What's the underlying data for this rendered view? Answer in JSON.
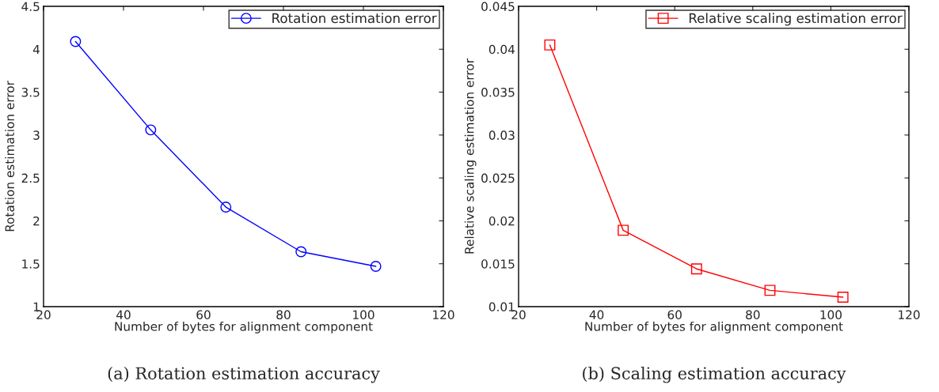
{
  "chart_data": [
    {
      "type": "line",
      "title": "(a) Rotation estimation accuracy",
      "xlabel": "Number of bytes for alignment component",
      "ylabel": "Rotation estimation error",
      "x": [
        28,
        46.8,
        65.6,
        84.4,
        103.1
      ],
      "series": [
        {
          "name": "Rotation estimation error",
          "color": "#0000ff",
          "values": [
            4.09,
            3.06,
            2.16,
            1.64,
            1.47
          ]
        }
      ],
      "xlim": [
        20,
        120
      ],
      "xticks": [
        20,
        40,
        60,
        80,
        100,
        120
      ],
      "ylim": [
        1,
        4.5
      ],
      "yticks": [
        1,
        1.5,
        2,
        2.5,
        3,
        3.5,
        4,
        4.5
      ],
      "marker": "circle",
      "line_style": "solid",
      "legend": "top right",
      "grid": false
    },
    {
      "type": "line",
      "title": "(b) Scaling estimation accuracy",
      "xlabel": "Number of bytes for alignment component",
      "ylabel": "Relative scaling estimation error",
      "x": [
        28,
        46.8,
        65.6,
        84.4,
        103.1
      ],
      "series": [
        {
          "name": "Relative scaling estimation error",
          "color": "#ff0000",
          "values": [
            0.0405,
            0.0189,
            0.0144,
            0.0119,
            0.0111
          ]
        }
      ],
      "xlim": [
        20,
        120
      ],
      "xticks": [
        20,
        40,
        60,
        80,
        100,
        120
      ],
      "ylim": [
        0.01,
        0.045
      ],
      "yticks": [
        0.01,
        0.015,
        0.02,
        0.025,
        0.03,
        0.035,
        0.04,
        0.045
      ],
      "marker": "square",
      "line_style": "solid",
      "legend": "top right",
      "grid": false
    }
  ]
}
